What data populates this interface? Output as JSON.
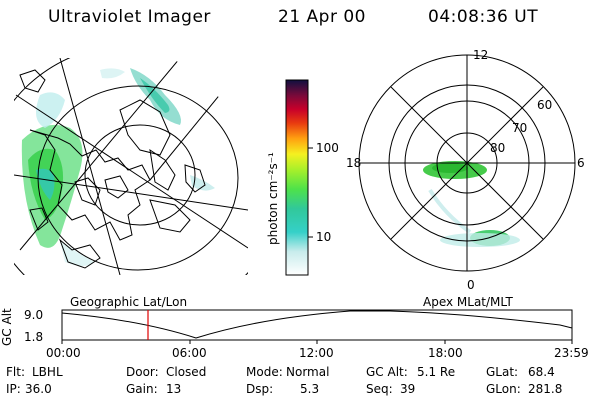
{
  "header": {
    "instrument": "Ultraviolet Imager",
    "date": "21 Apr 00",
    "time": "04:08:36 UT"
  },
  "colorbar": {
    "label": "photon cm⁻²s⁻¹",
    "ticks": [
      "100",
      "10"
    ],
    "tick_values": [
      100,
      10
    ]
  },
  "polar_plot": {
    "mlt_labels": [
      "12",
      "18",
      "6",
      "0"
    ],
    "mlat_labels": [
      "60",
      "70",
      "80"
    ]
  },
  "panels": {
    "left_caption": "Geographic Lat/Lon",
    "right_caption": "Apex MLat/MLT"
  },
  "altitude_plot": {
    "ylabel": "GC Alt",
    "y_ticks": [
      "9.0",
      "1.8"
    ],
    "x_ticks": [
      "00:00",
      "06:00",
      "12:00",
      "18:00",
      "23:59"
    ],
    "current_time_marker": "04:08:36",
    "marker_color": "#e00000"
  },
  "footer": {
    "row1": [
      {
        "key": "Flt:",
        "value": "LBHL"
      },
      {
        "key": "Door:",
        "value": "Closed"
      },
      {
        "key": "Mode:",
        "value": "Normal"
      },
      {
        "key": "GC Alt:",
        "value": "5.1 Re"
      },
      {
        "key": "GLat:",
        "value": "68.4"
      }
    ],
    "row2": [
      {
        "key": "IP:",
        "value": "36.0"
      },
      {
        "key": "Gain:",
        "value": "13"
      },
      {
        "key": "Dsp:",
        "value": "5.3"
      },
      {
        "key": "Seq:",
        "value": "39"
      },
      {
        "key": "GLon:",
        "value": "281.8"
      }
    ]
  }
}
